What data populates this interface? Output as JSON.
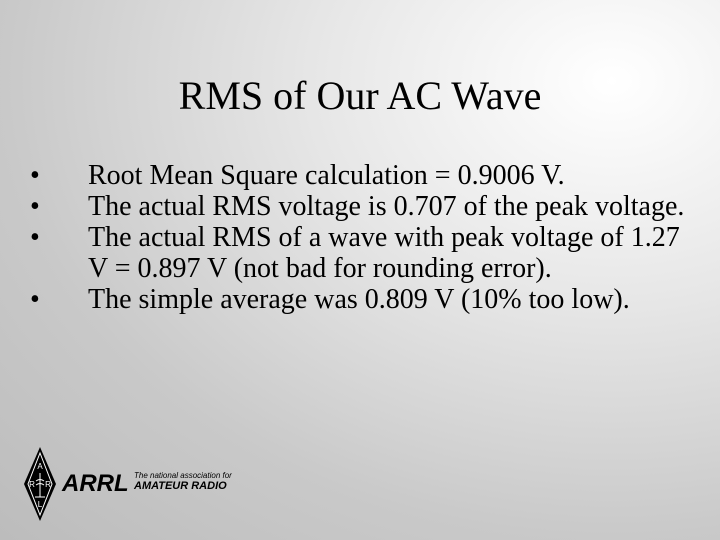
{
  "title": "RMS of Our AC Wave",
  "bullets": [
    "Root Mean Square calculation = 0.9006 V.",
    "The actual RMS voltage is 0.707 of the peak voltage.",
    "The actual RMS of a wave with peak voltage of 1.27 V = 0.897 V  (not bad for rounding error).",
    "The simple average was 0.809 V (10% too low)."
  ],
  "logo": {
    "name": "ARRL",
    "tagline_top": "The national association for",
    "tagline_bottom": "AMATEUR RADIO",
    "diamond_letters": "A R R L"
  }
}
